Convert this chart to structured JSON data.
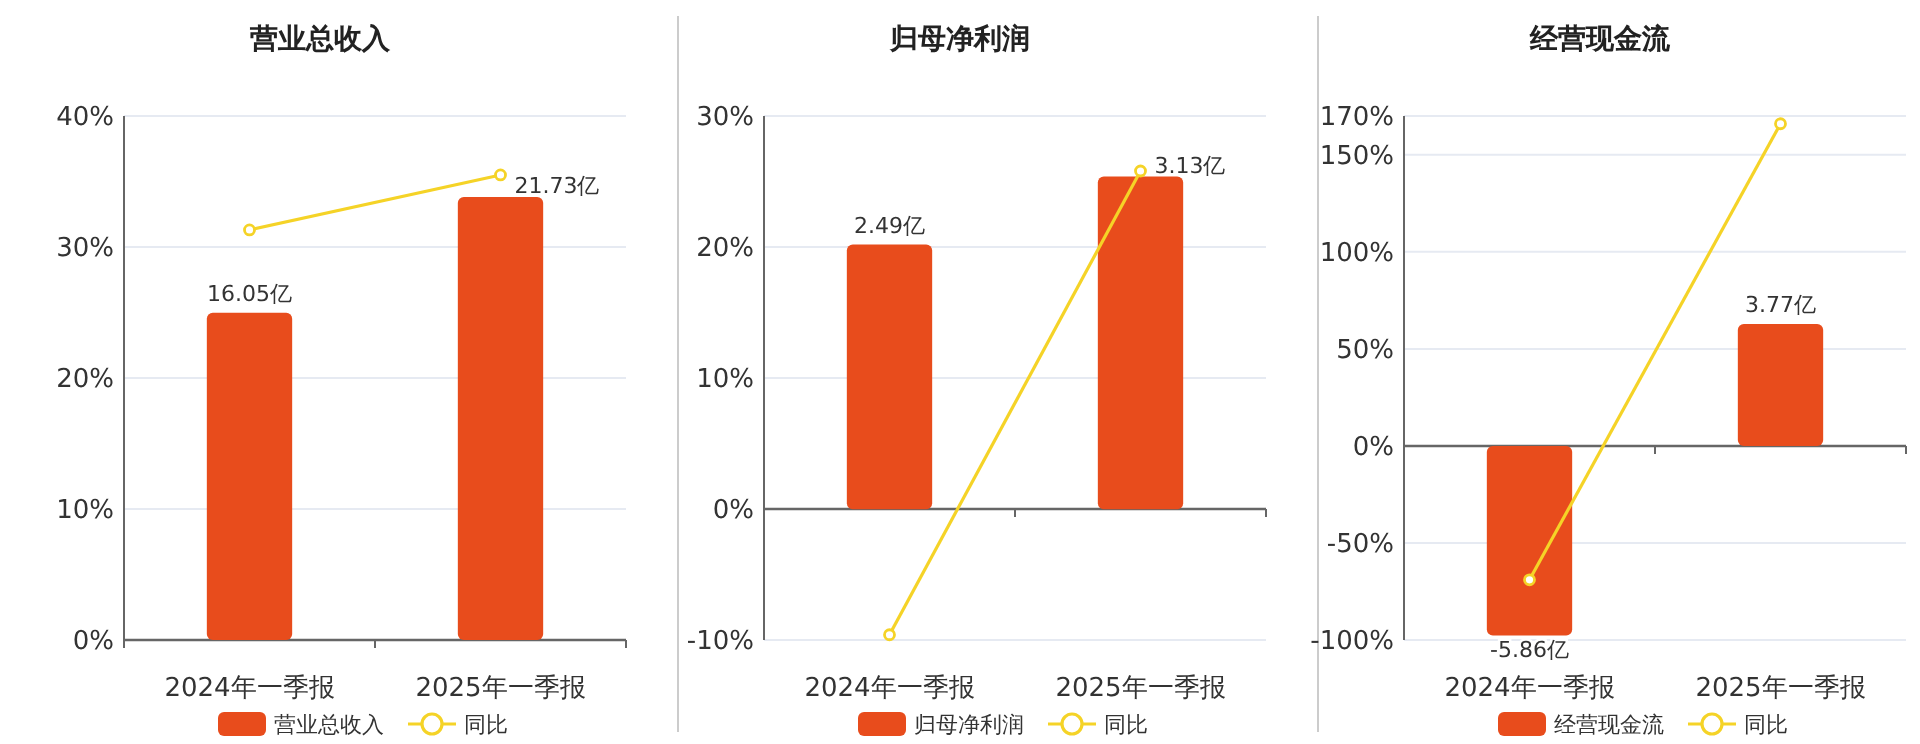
{
  "chart_data": [
    {
      "type": "bar",
      "title": "营业总收入",
      "categories": [
        "2024年一季报",
        "2025年一季报"
      ],
      "series": [
        {
          "name": "营业总收入",
          "color": "#e84c1c",
          "values": [
            16.05,
            21.73
          ],
          "value_labels": [
            "16.05亿",
            "21.73亿"
          ],
          "axis": "y2"
        },
        {
          "name": "同比",
          "type": "line",
          "color": "#f5d327",
          "marker": "circle",
          "values": [
            31.3,
            35.5
          ]
        }
      ],
      "ylim": [
        0,
        40
      ],
      "yticks": [
        {
          "value": 0,
          "label": "0%"
        },
        {
          "value": 10,
          "label": "10%"
        },
        {
          "value": 20,
          "label": "20%"
        },
        {
          "value": 30,
          "label": "30%"
        },
        {
          "value": 40,
          "label": "40%"
        }
      ],
      "y2lim": [
        0,
        25.7
      ],
      "grid": "y",
      "legend": "bottom"
    },
    {
      "type": "bar",
      "title": "归母净利润",
      "categories": [
        "2024年一季报",
        "2025年一季报"
      ],
      "series": [
        {
          "name": "归母净利润",
          "color": "#e84c1c",
          "values": [
            2.49,
            3.13
          ],
          "value_labels": [
            "2.49亿",
            "3.13亿"
          ],
          "axis": "y2"
        },
        {
          "name": "同比",
          "type": "line",
          "color": "#f5d327",
          "marker": "circle",
          "values": [
            -9.6,
            25.8
          ]
        }
      ],
      "ylim": [
        -10,
        30
      ],
      "yticks": [
        {
          "value": -10,
          "label": "-10%"
        },
        {
          "value": 0,
          "label": "0%"
        },
        {
          "value": 10,
          "label": "10%"
        },
        {
          "value": 20,
          "label": "20%"
        },
        {
          "value": 30,
          "label": "30%"
        }
      ],
      "y2lim": [
        -1.23,
        3.7
      ],
      "grid": "y",
      "legend": "bottom"
    },
    {
      "type": "bar",
      "title": "经营现金流",
      "categories": [
        "2024年一季报",
        "2025年一季报"
      ],
      "series": [
        {
          "name": "经营现金流",
          "color": "#e84c1c",
          "values": [
            -5.86,
            3.77
          ],
          "value_labels": [
            "-5.86亿",
            "3.77亿"
          ],
          "axis": "y2"
        },
        {
          "name": "同比",
          "type": "line",
          "color": "#f5d327",
          "marker": "circle",
          "values": [
            -69,
            166
          ]
        }
      ],
      "ylim": [
        -100,
        170
      ],
      "yticks": [
        {
          "value": -100,
          "label": "-100%"
        },
        {
          "value": -50,
          "label": "-50%"
        },
        {
          "value": 0,
          "label": "0%"
        },
        {
          "value": 50,
          "label": "50%"
        },
        {
          "value": 100,
          "label": "100%"
        },
        {
          "value": 150,
          "label": "150%"
        },
        {
          "value": 170,
          "label": "170%"
        }
      ],
      "y2lim": [
        -6,
        10.2
      ],
      "grid": "y",
      "legend": "bottom"
    }
  ]
}
